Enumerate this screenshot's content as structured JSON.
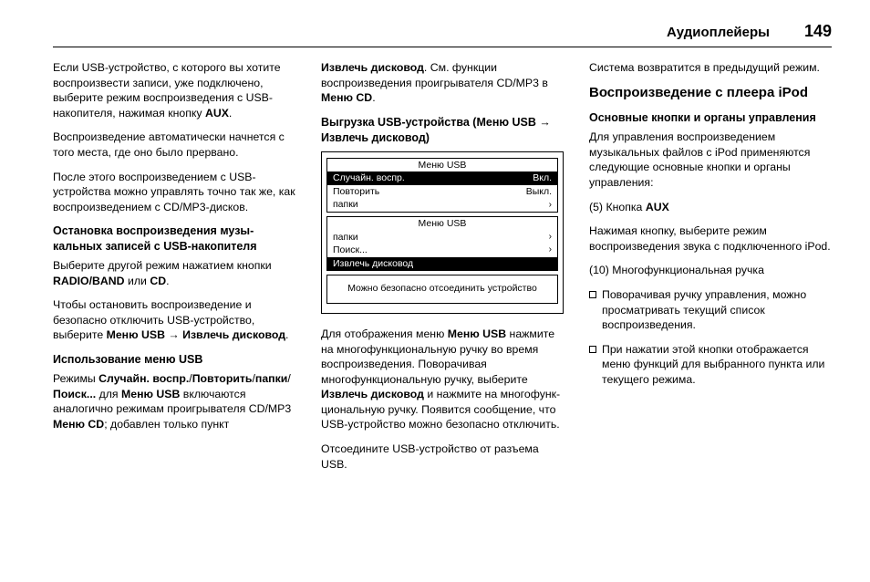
{
  "header": {
    "section": "Аудиоплейеры",
    "page": "149"
  },
  "col1": {
    "p1a": "Если USB-устройство, с которого вы хотите воспроизвести записи, уже подключено, выберите режим воспроизведения с USB-накопи­теля, нажимая кнопку ",
    "p1b_bold": "AUX",
    "p1c": ".",
    "p2": "Воспроизведение автоматически начнется с того места, где оно было прервано.",
    "p3": "После этого воспроизведением с USB-устройства можно управлять точно так же, как воспроизведе­нием с CD/MP3-дисков.",
    "sub1": "Остановка воспроизведения музы­кальных записей с USB-накопи­теля",
    "p4a": "Выберите другой режим нажатием кнопки ",
    "p4b_bold": "RADIO/BAND",
    "p4c": " или ",
    "p4d_bold": "CD",
    "p4e": ".",
    "p5a": "Чтобы остановить воспроизведе­ние и безопасно отключить USB-устройство, выберите ",
    "p5b_bold": "Меню USB",
    "p5c_arrow": " → ",
    "p5d_bold": "Извлечь дисковод",
    "p5e": ".",
    "sub2": "Использование меню USB",
    "p6a": "Режимы ",
    "p6b_bold": "Случайн. воспр.",
    "p6c": "/",
    "p6d_bold": "Повторить",
    "p6e": "/",
    "p6f_bold": "папки",
    "p6g": "/",
    "p6h_bold": "Поиск...",
    "p6i": " для ",
    "p6j_bold": "Меню USB",
    "p6k": " включаются аналогично режимам проигрывателя CD/MP3 ",
    "p6l_bold": "Меню CD",
    "p6m": "; добавлен только пункт"
  },
  "col2": {
    "p1a_bold": "Извлечь дисковод",
    "p1b": ". См. функции воспроизведения проигрывателя CD/MP3 в ",
    "p1c_bold": "Меню CD",
    "p1d": ".",
    "sub1a": "Выгрузка USB-устройства (Меню USB ",
    "sub1b_arrow": "→",
    "sub1c": " Извлечь дисковод)",
    "device": {
      "panels": [
        {
          "title": "Меню USB",
          "rows": [
            {
              "left": "Случайн. воспр.",
              "right": "Вкл.",
              "hl": true
            },
            {
              "left": "Повторить",
              "right": "Выкл.",
              "hl": false
            },
            {
              "left": "папки",
              "right": "›",
              "hl": false
            }
          ]
        },
        {
          "title": "Меню USB",
          "rows": [
            {
              "left": "папки",
              "right": "›",
              "hl": false
            },
            {
              "left": "Поиск...",
              "right": "›",
              "hl": false
            },
            {
              "left": "Извлечь дисковод",
              "right": "",
              "hl": true
            }
          ]
        },
        {
          "msg": "Можно безопасно отсоединить устройство"
        }
      ]
    },
    "p2a": "Для отображения меню ",
    "p2b_bold": "Меню USB",
    "p2c": " нажмите на многофункциональную ручку во время воспроизведения. Поворачивая многофункциональ­ную ручку, выберите ",
    "p2d_bold": "Извлечь дисковод",
    "p2e": " и нажмите на многофунк­циональную ручку. Появится сооб­щение, что USB-устройство можно безопасно отключить.",
    "p3": "Отсоедините USB-устройство от разъема USB."
  },
  "col3": {
    "p1": "Система возвратится в предыду­щий режим.",
    "h1": "Воспроизведение с плеера iPod",
    "sub1": "Основные кнопки и органы управления",
    "p2": "Для управления воспроизведе­нием музыкальных файлов с iPod применяются следующие основ­ные кнопки и органы управления:",
    "p3a": "(5) Кнопка ",
    "p3b_bold": "AUX",
    "p4": "Нажимая кнопку, выберите режим воспроизведения звука с подклю­ченного iPod.",
    "p5": "(10) Многофункциональная ручка",
    "li1": "Поворачивая ручку управления, можно просматривать текущий список воспроизведения.",
    "li2": "При нажатии этой кнопки отобра­жается меню функций для вы­бранного пункта или текущего режима."
  }
}
